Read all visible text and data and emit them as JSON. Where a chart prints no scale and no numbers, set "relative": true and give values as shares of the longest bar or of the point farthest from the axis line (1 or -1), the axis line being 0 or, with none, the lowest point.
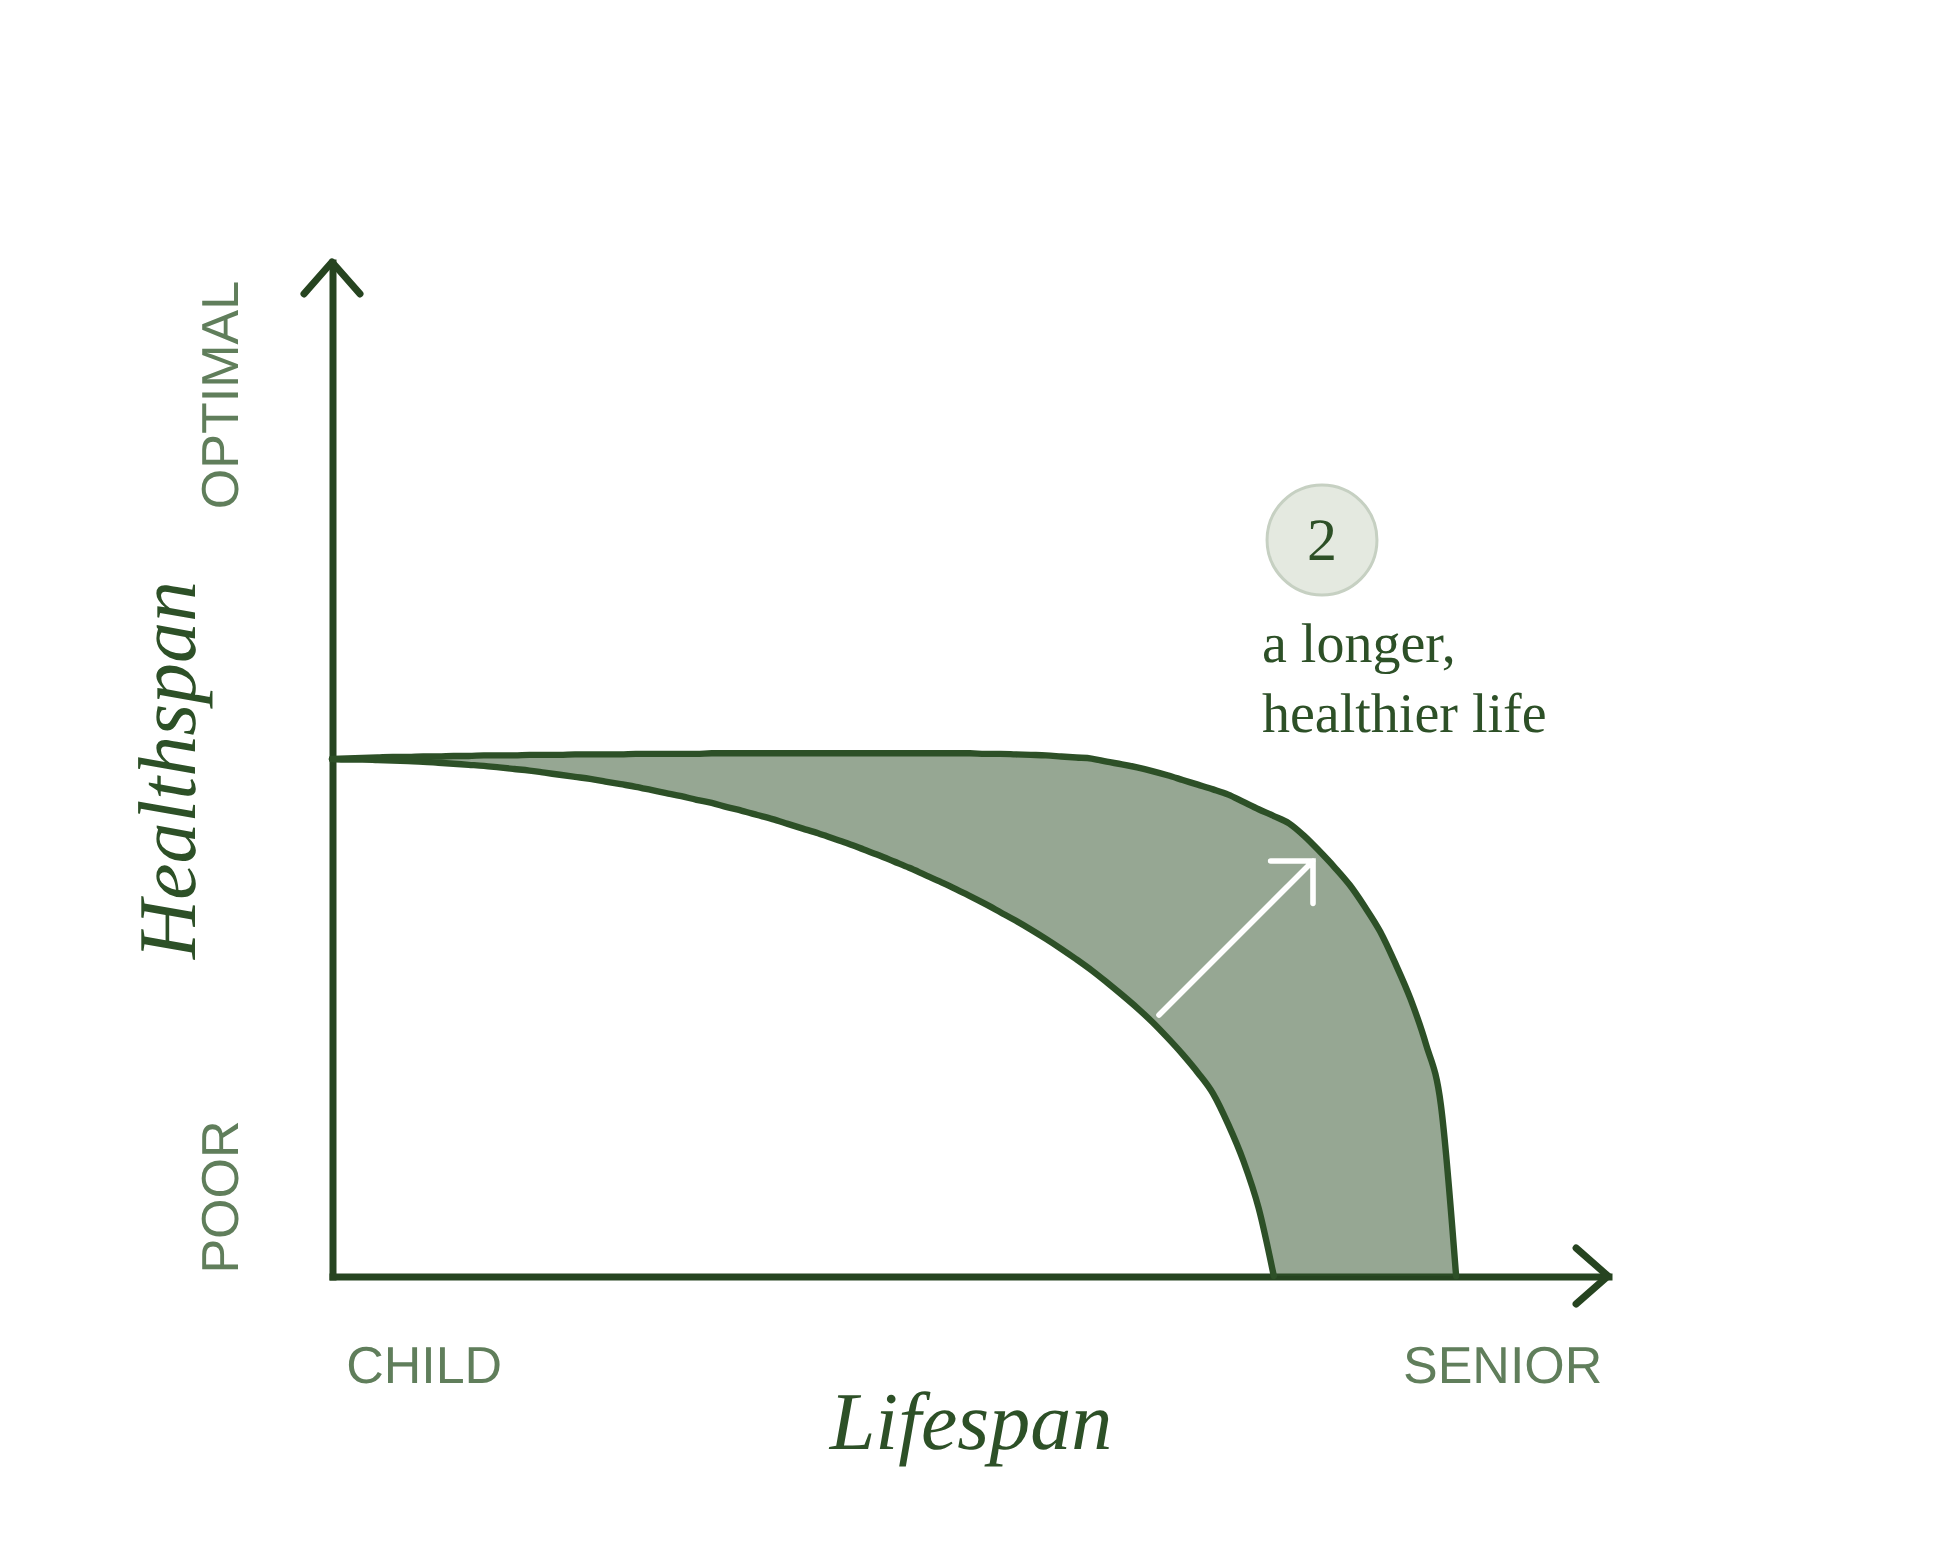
{
  "chart_data": {
    "type": "line",
    "relative": true,
    "xlabel": "Lifespan",
    "ylabel": "Healthspan",
    "categories": [
      null,
      null,
      null,
      null,
      null,
      null,
      "CHILD",
      null,
      null,
      null,
      null,
      null,
      null,
      null,
      null,
      null,
      null,
      null,
      null,
      null,
      null,
      null,
      null,
      null,
      null,
      null,
      null,
      null,
      null,
      null,
      null,
      null,
      null,
      null,
      null,
      null,
      null,
      null,
      null,
      null,
      null,
      null,
      null,
      null,
      null,
      null,
      null,
      null,
      null,
      null,
      null,
      null,
      null,
      null,
      null,
      null,
      null,
      null,
      null,
      null,
      null,
      null,
      null,
      null,
      null,
      null,
      null,
      null,
      null,
      null,
      null,
      null,
      null,
      null,
      null,
      null,
      null,
      "SENIOR",
      null,
      null,
      null,
      null,
      null,
      null,
      null
    ],
    "annotations": [
      "OPTIMAL",
      "2",
      "a longer, healthier life",
      "POOR"
    ],
    "series": [
      {
        "color": "#2d5027",
        "values": [
          0.989,
          0.988,
          0.988,
          0.987,
          0.986,
          0.985,
          0.984,
          0.982,
          0.98,
          0.978,
          0.976,
          0.973,
          0.97,
          0.967,
          0.963,
          0.959,
          0.955,
          0.951,
          0.946,
          0.941,
          0.936,
          0.93,
          0.924,
          0.918,
          0.911,
          0.905,
          0.897,
          0.89,
          0.882,
          0.874,
          0.865,
          0.856,
          0.847,
          0.837,
          0.827,
          0.816,
          0.805,
          0.793,
          0.781,
          0.768,
          0.755,
          0.741,
          0.727,
          0.712,
          0.696,
          0.68,
          0.663,
          0.645,
          0.626,
          0.606,
          0.585,
          0.562,
          0.538,
          0.513,
          0.486,
          0.456,
          0.424,
          0.389,
          0.349,
          0.29,
          0.22,
          0.13,
          0,
          null,
          null,
          null,
          null,
          null,
          null,
          null,
          null,
          null,
          null,
          null,
          null,
          null,
          null,
          null,
          null,
          null,
          null,
          null,
          null,
          null,
          null
        ]
      },
      {
        "color": "#2d5027",
        "values": [
          0.989,
          0.99,
          0.991,
          0.992,
          0.993,
          0.993,
          0.994,
          0.994,
          0.995,
          0.995,
          0.996,
          0.996,
          0.996,
          0.997,
          0.997,
          0.997,
          0.998,
          0.998,
          0.998,
          0.998,
          0.999,
          0.999,
          0.999,
          0.999,
          0.999,
          1,
          1,
          1,
          1,
          1,
          1,
          1,
          1,
          1,
          1,
          1,
          1,
          1,
          1,
          1,
          1,
          1,
          1,
          0.999,
          0.999,
          0.998,
          0.997,
          0.996,
          0.994,
          0.992,
          0.99,
          0.984,
          0.979,
          0.973,
          0.966,
          0.958,
          0.949,
          0.94,
          0.931,
          0.921,
          0.907,
          0.893,
          0.88,
          0.866,
          0.842,
          0.813,
          0.782,
          0.748,
          0.706,
          0.659,
          0.598,
          0.53,
          0.445,
          0.327,
          0,
          null,
          null,
          null,
          null,
          null,
          null,
          null,
          null,
          null,
          null
        ],
        "lower": [
          0.989,
          0.988,
          0.988,
          0.987,
          0.986,
          0.985,
          0.984,
          0.982,
          0.98,
          0.978,
          0.976,
          0.973,
          0.97,
          0.967,
          0.963,
          0.959,
          0.955,
          0.951,
          0.946,
          0.941,
          0.936,
          0.93,
          0.924,
          0.918,
          0.911,
          0.905,
          0.897,
          0.89,
          0.882,
          0.874,
          0.865,
          0.856,
          0.847,
          0.837,
          0.827,
          0.816,
          0.805,
          0.793,
          0.781,
          0.768,
          0.755,
          0.741,
          0.727,
          0.712,
          0.696,
          0.68,
          0.663,
          0.645,
          0.626,
          0.606,
          0.585,
          0.562,
          0.538,
          0.513,
          0.486,
          0.456,
          0.424,
          0.389,
          0.349,
          0.29,
          0.22,
          0.13,
          0,
          0,
          0,
          0,
          0,
          0,
          0,
          0,
          0,
          0,
          0,
          0,
          0,
          null,
          null,
          null,
          null,
          null,
          null,
          null,
          null,
          null,
          null
        ],
        "upper": [
          0.989,
          0.99,
          0.991,
          0.992,
          0.993,
          0.993,
          0.994,
          0.994,
          0.995,
          0.995,
          0.996,
          0.996,
          0.996,
          0.997,
          0.997,
          0.997,
          0.998,
          0.998,
          0.998,
          0.998,
          0.999,
          0.999,
          0.999,
          0.999,
          0.999,
          1,
          1,
          1,
          1,
          1,
          1,
          1,
          1,
          1,
          1,
          1,
          1,
          1,
          1,
          1,
          1,
          1,
          1,
          0.999,
          0.999,
          0.998,
          0.997,
          0.996,
          0.994,
          0.992,
          0.99,
          0.984,
          0.979,
          0.973,
          0.966,
          0.958,
          0.949,
          0.94,
          0.931,
          0.921,
          0.907,
          0.893,
          0.88,
          0.866,
          0.842,
          0.813,
          0.782,
          0.748,
          0.706,
          0.659,
          0.598,
          0.53,
          0.445,
          0.327,
          0,
          null,
          null,
          null,
          null,
          null,
          null,
          null,
          null,
          null,
          null
        ]
      }
    ]
  }
}
